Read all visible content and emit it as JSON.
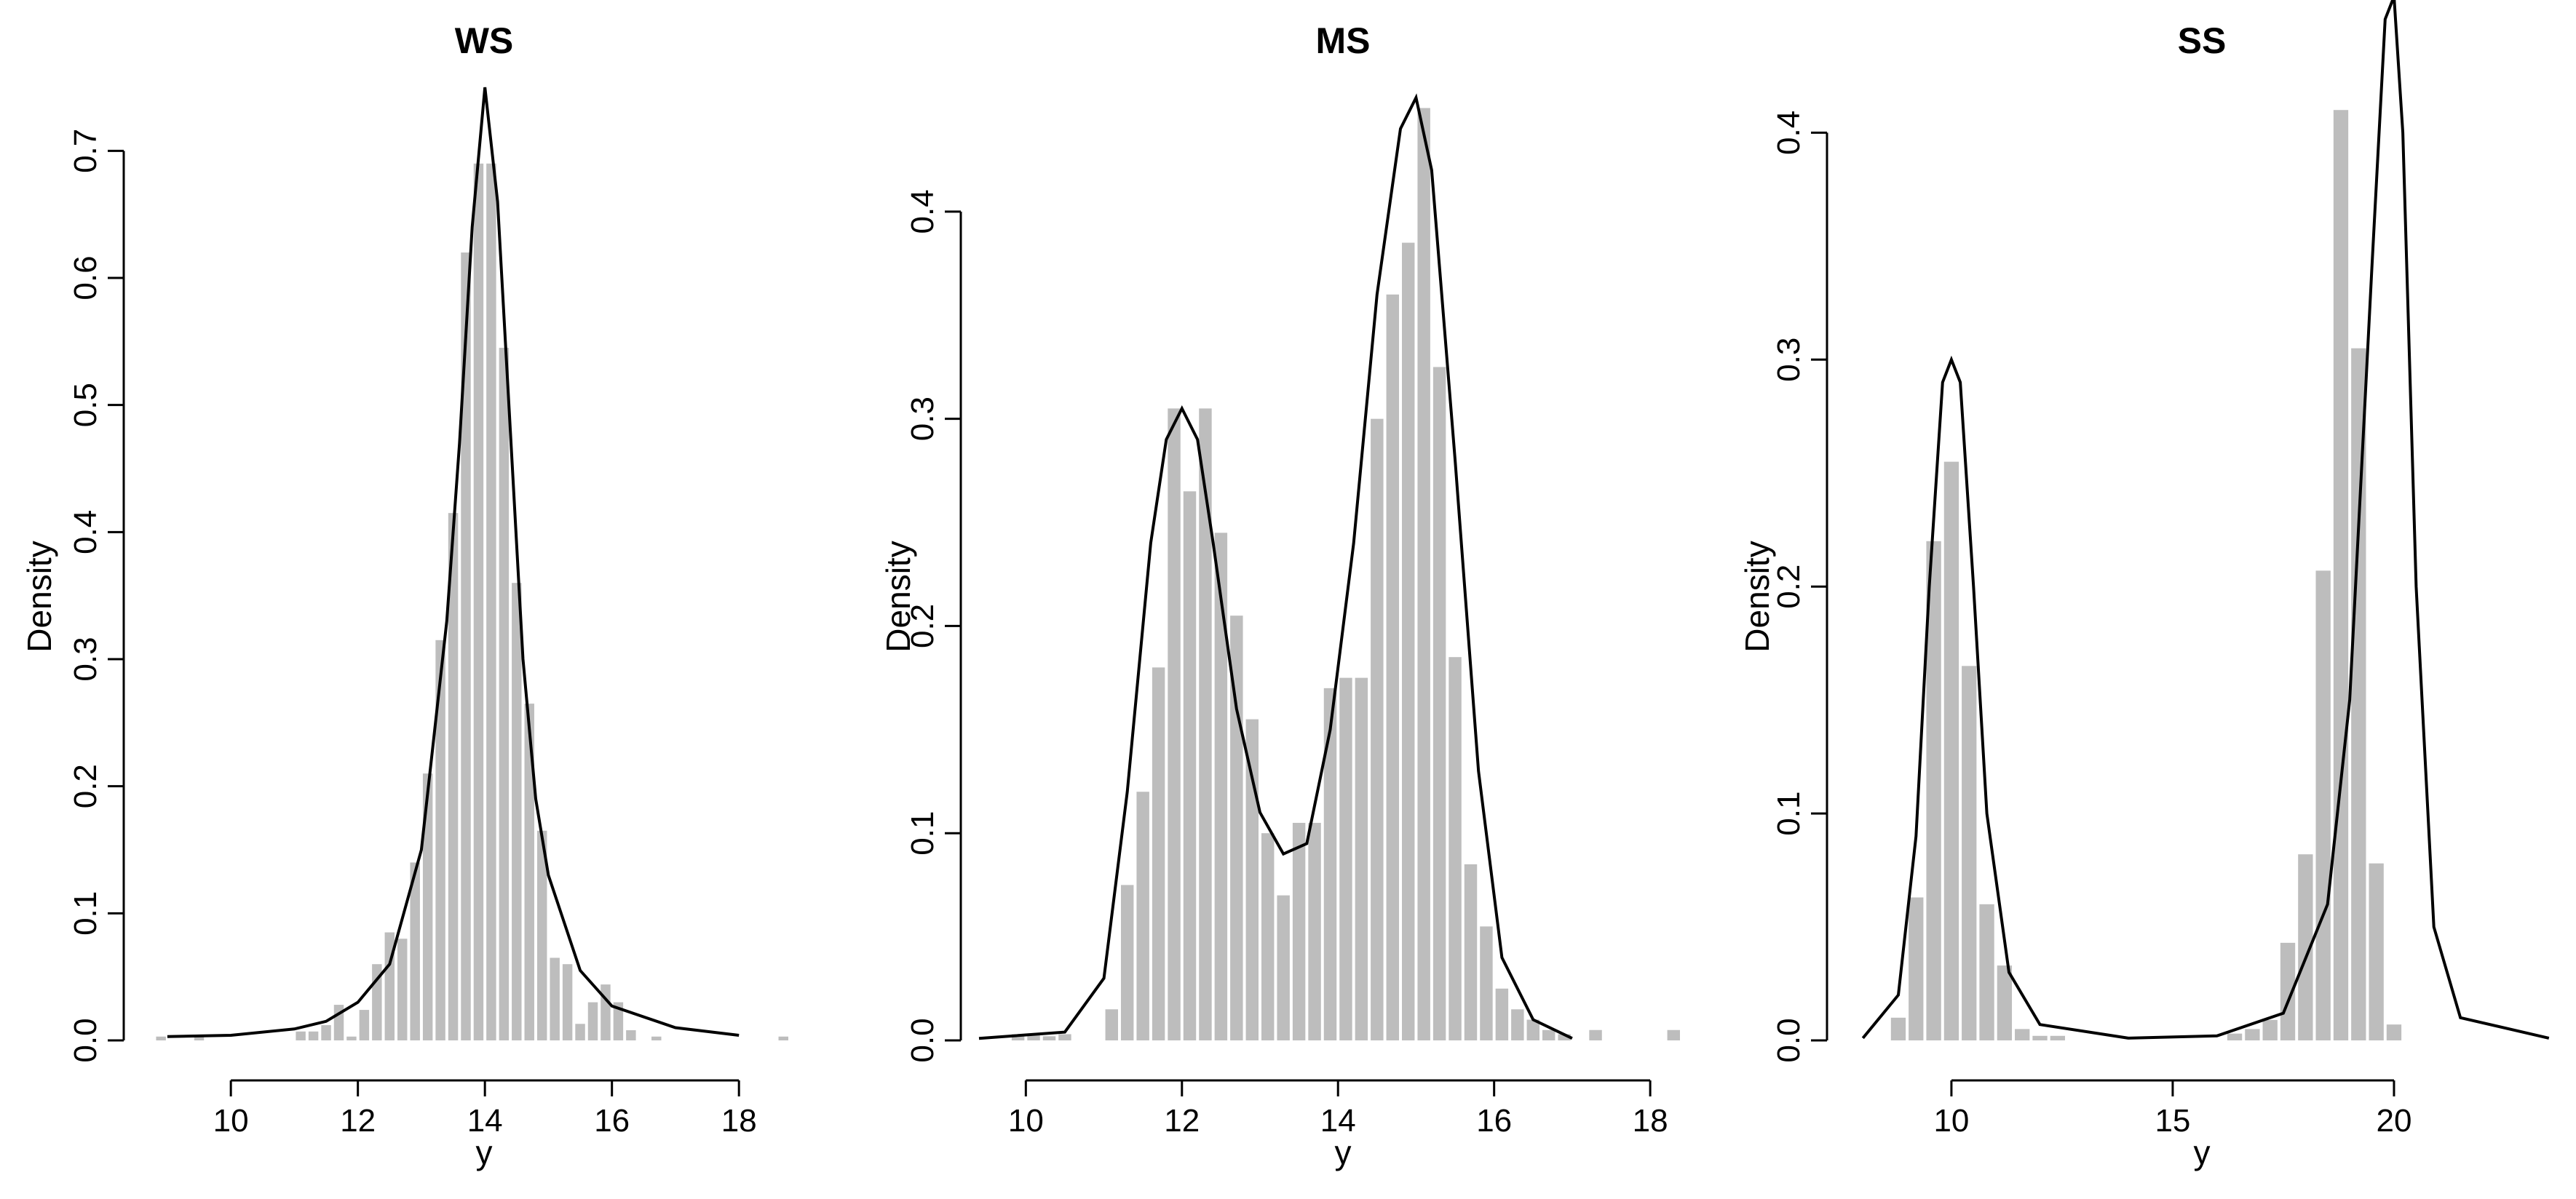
{
  "chart_data": [
    {
      "type": "bar",
      "title": "WS",
      "xlabel": "y",
      "ylabel": "Density",
      "xlim": [
        8.6,
        18.8
      ],
      "ylim": [
        0,
        0.75
      ],
      "x_ticks": [
        10,
        12,
        14,
        16,
        18
      ],
      "y_ticks": [
        0.0,
        0.1,
        0.2,
        0.3,
        0.4,
        0.5,
        0.6,
        0.7
      ],
      "bin_width": 0.2,
      "bins": [
        [
          8.8,
          0.003
        ],
        [
          9.4,
          0.003
        ],
        [
          11.0,
          0.007
        ],
        [
          11.2,
          0.007
        ],
        [
          11.4,
          0.012
        ],
        [
          11.6,
          0.028
        ],
        [
          11.8,
          0.003
        ],
        [
          12.0,
          0.024
        ],
        [
          12.2,
          0.06
        ],
        [
          12.4,
          0.085
        ],
        [
          12.6,
          0.08
        ],
        [
          12.8,
          0.14
        ],
        [
          13.0,
          0.21
        ],
        [
          13.2,
          0.315
        ],
        [
          13.4,
          0.415
        ],
        [
          13.6,
          0.62
        ],
        [
          13.8,
          0.69
        ],
        [
          14.0,
          0.69
        ],
        [
          14.2,
          0.545
        ],
        [
          14.4,
          0.36
        ],
        [
          14.6,
          0.265
        ],
        [
          14.8,
          0.165
        ],
        [
          15.0,
          0.065
        ],
        [
          15.2,
          0.06
        ],
        [
          15.4,
          0.013
        ],
        [
          15.6,
          0.03
        ],
        [
          15.8,
          0.044
        ],
        [
          16.0,
          0.03
        ],
        [
          16.2,
          0.008
        ],
        [
          16.6,
          0.003
        ],
        [
          18.6,
          0.003
        ]
      ],
      "curve": [
        [
          9.0,
          0.003
        ],
        [
          10.0,
          0.004
        ],
        [
          11.0,
          0.009
        ],
        [
          11.5,
          0.015
        ],
        [
          12.0,
          0.03
        ],
        [
          12.5,
          0.06
        ],
        [
          13.0,
          0.15
        ],
        [
          13.4,
          0.33
        ],
        [
          13.6,
          0.47
        ],
        [
          13.8,
          0.64
        ],
        [
          14.0,
          0.75
        ],
        [
          14.2,
          0.66
        ],
        [
          14.4,
          0.48
        ],
        [
          14.6,
          0.3
        ],
        [
          14.8,
          0.19
        ],
        [
          15.0,
          0.13
        ],
        [
          15.5,
          0.055
        ],
        [
          16.0,
          0.027
        ],
        [
          17.0,
          0.01
        ],
        [
          18.0,
          0.004
        ]
      ]
    },
    {
      "type": "bar",
      "title": "MS",
      "xlabel": "y",
      "ylabel": "Density",
      "xlim": [
        9.4,
        18.4
      ],
      "ylim": [
        0,
        0.46
      ],
      "x_ticks": [
        10,
        12,
        14,
        16,
        18
      ],
      "y_ticks": [
        0.0,
        0.1,
        0.2,
        0.3,
        0.4
      ],
      "bin_width": 0.2,
      "bins": [
        [
          9.8,
          0.003
        ],
        [
          10.0,
          0.003
        ],
        [
          10.2,
          0.002
        ],
        [
          10.4,
          0.003
        ],
        [
          11.0,
          0.015
        ],
        [
          11.2,
          0.075
        ],
        [
          11.4,
          0.12
        ],
        [
          11.6,
          0.18
        ],
        [
          11.8,
          0.305
        ],
        [
          12.0,
          0.265
        ],
        [
          12.2,
          0.305
        ],
        [
          12.4,
          0.245
        ],
        [
          12.6,
          0.205
        ],
        [
          12.8,
          0.155
        ],
        [
          13.0,
          0.1
        ],
        [
          13.2,
          0.07
        ],
        [
          13.4,
          0.105
        ],
        [
          13.6,
          0.105
        ],
        [
          13.8,
          0.17
        ],
        [
          14.0,
          0.175
        ],
        [
          14.2,
          0.175
        ],
        [
          14.4,
          0.3
        ],
        [
          14.6,
          0.36
        ],
        [
          14.8,
          0.385
        ],
        [
          15.0,
          0.45
        ],
        [
          15.2,
          0.325
        ],
        [
          15.4,
          0.185
        ],
        [
          15.6,
          0.085
        ],
        [
          15.8,
          0.055
        ],
        [
          16.0,
          0.025
        ],
        [
          16.2,
          0.015
        ],
        [
          16.4,
          0.01
        ],
        [
          16.6,
          0.005
        ],
        [
          16.8,
          0.003
        ],
        [
          17.2,
          0.005
        ],
        [
          18.2,
          0.005
        ]
      ],
      "curve": [
        [
          9.4,
          0.001
        ],
        [
          10.5,
          0.004
        ],
        [
          11.0,
          0.03
        ],
        [
          11.3,
          0.12
        ],
        [
          11.6,
          0.24
        ],
        [
          11.8,
          0.29
        ],
        [
          12.0,
          0.305
        ],
        [
          12.2,
          0.29
        ],
        [
          12.4,
          0.24
        ],
        [
          12.7,
          0.16
        ],
        [
          13.0,
          0.11
        ],
        [
          13.3,
          0.09
        ],
        [
          13.6,
          0.095
        ],
        [
          13.9,
          0.15
        ],
        [
          14.2,
          0.24
        ],
        [
          14.5,
          0.36
        ],
        [
          14.8,
          0.44
        ],
        [
          15.0,
          0.455
        ],
        [
          15.2,
          0.42
        ],
        [
          15.5,
          0.28
        ],
        [
          15.8,
          0.13
        ],
        [
          16.1,
          0.04
        ],
        [
          16.5,
          0.01
        ],
        [
          17.0,
          0.001
        ]
      ]
    },
    {
      "type": "bar",
      "title": "SS",
      "xlabel": "y",
      "ylabel": "Density",
      "xlim": [
        7.6,
        23.8
      ],
      "ylim": [
        0,
        0.42
      ],
      "x_ticks": [
        10,
        15,
        20
      ],
      "y_ticks": [
        0.0,
        0.1,
        0.2,
        0.3,
        0.4
      ],
      "bin_width": 0.4,
      "bins": [
        [
          8.6,
          0.01
        ],
        [
          9.0,
          0.063
        ],
        [
          9.4,
          0.22
        ],
        [
          9.8,
          0.255
        ],
        [
          10.2,
          0.165
        ],
        [
          10.6,
          0.06
        ],
        [
          11.0,
          0.033
        ],
        [
          11.4,
          0.005
        ],
        [
          11.8,
          0.002
        ],
        [
          12.2,
          0.002
        ],
        [
          16.2,
          0.003
        ],
        [
          16.6,
          0.005
        ],
        [
          17.0,
          0.009
        ],
        [
          17.4,
          0.043
        ],
        [
          17.8,
          0.082
        ],
        [
          18.2,
          0.207
        ],
        [
          18.6,
          0.41
        ],
        [
          19.0,
          0.305
        ],
        [
          19.4,
          0.078
        ],
        [
          19.8,
          0.007
        ]
      ],
      "curve": [
        [
          8.0,
          0.001
        ],
        [
          8.8,
          0.02
        ],
        [
          9.2,
          0.09
        ],
        [
          9.5,
          0.2
        ],
        [
          9.8,
          0.29
        ],
        [
          10.0,
          0.3
        ],
        [
          10.2,
          0.29
        ],
        [
          10.5,
          0.2
        ],
        [
          10.8,
          0.1
        ],
        [
          11.3,
          0.03
        ],
        [
          12.0,
          0.007
        ],
        [
          14.0,
          0.001
        ],
        [
          16.0,
          0.002
        ],
        [
          17.5,
          0.012
        ],
        [
          18.5,
          0.06
        ],
        [
          19.0,
          0.15
        ],
        [
          19.5,
          0.34
        ],
        [
          19.8,
          0.45
        ],
        [
          20.0,
          0.46
        ],
        [
          20.2,
          0.4
        ],
        [
          20.5,
          0.2
        ],
        [
          20.9,
          0.05
        ],
        [
          21.5,
          0.01
        ],
        [
          23.5,
          0.001
        ]
      ]
    }
  ]
}
